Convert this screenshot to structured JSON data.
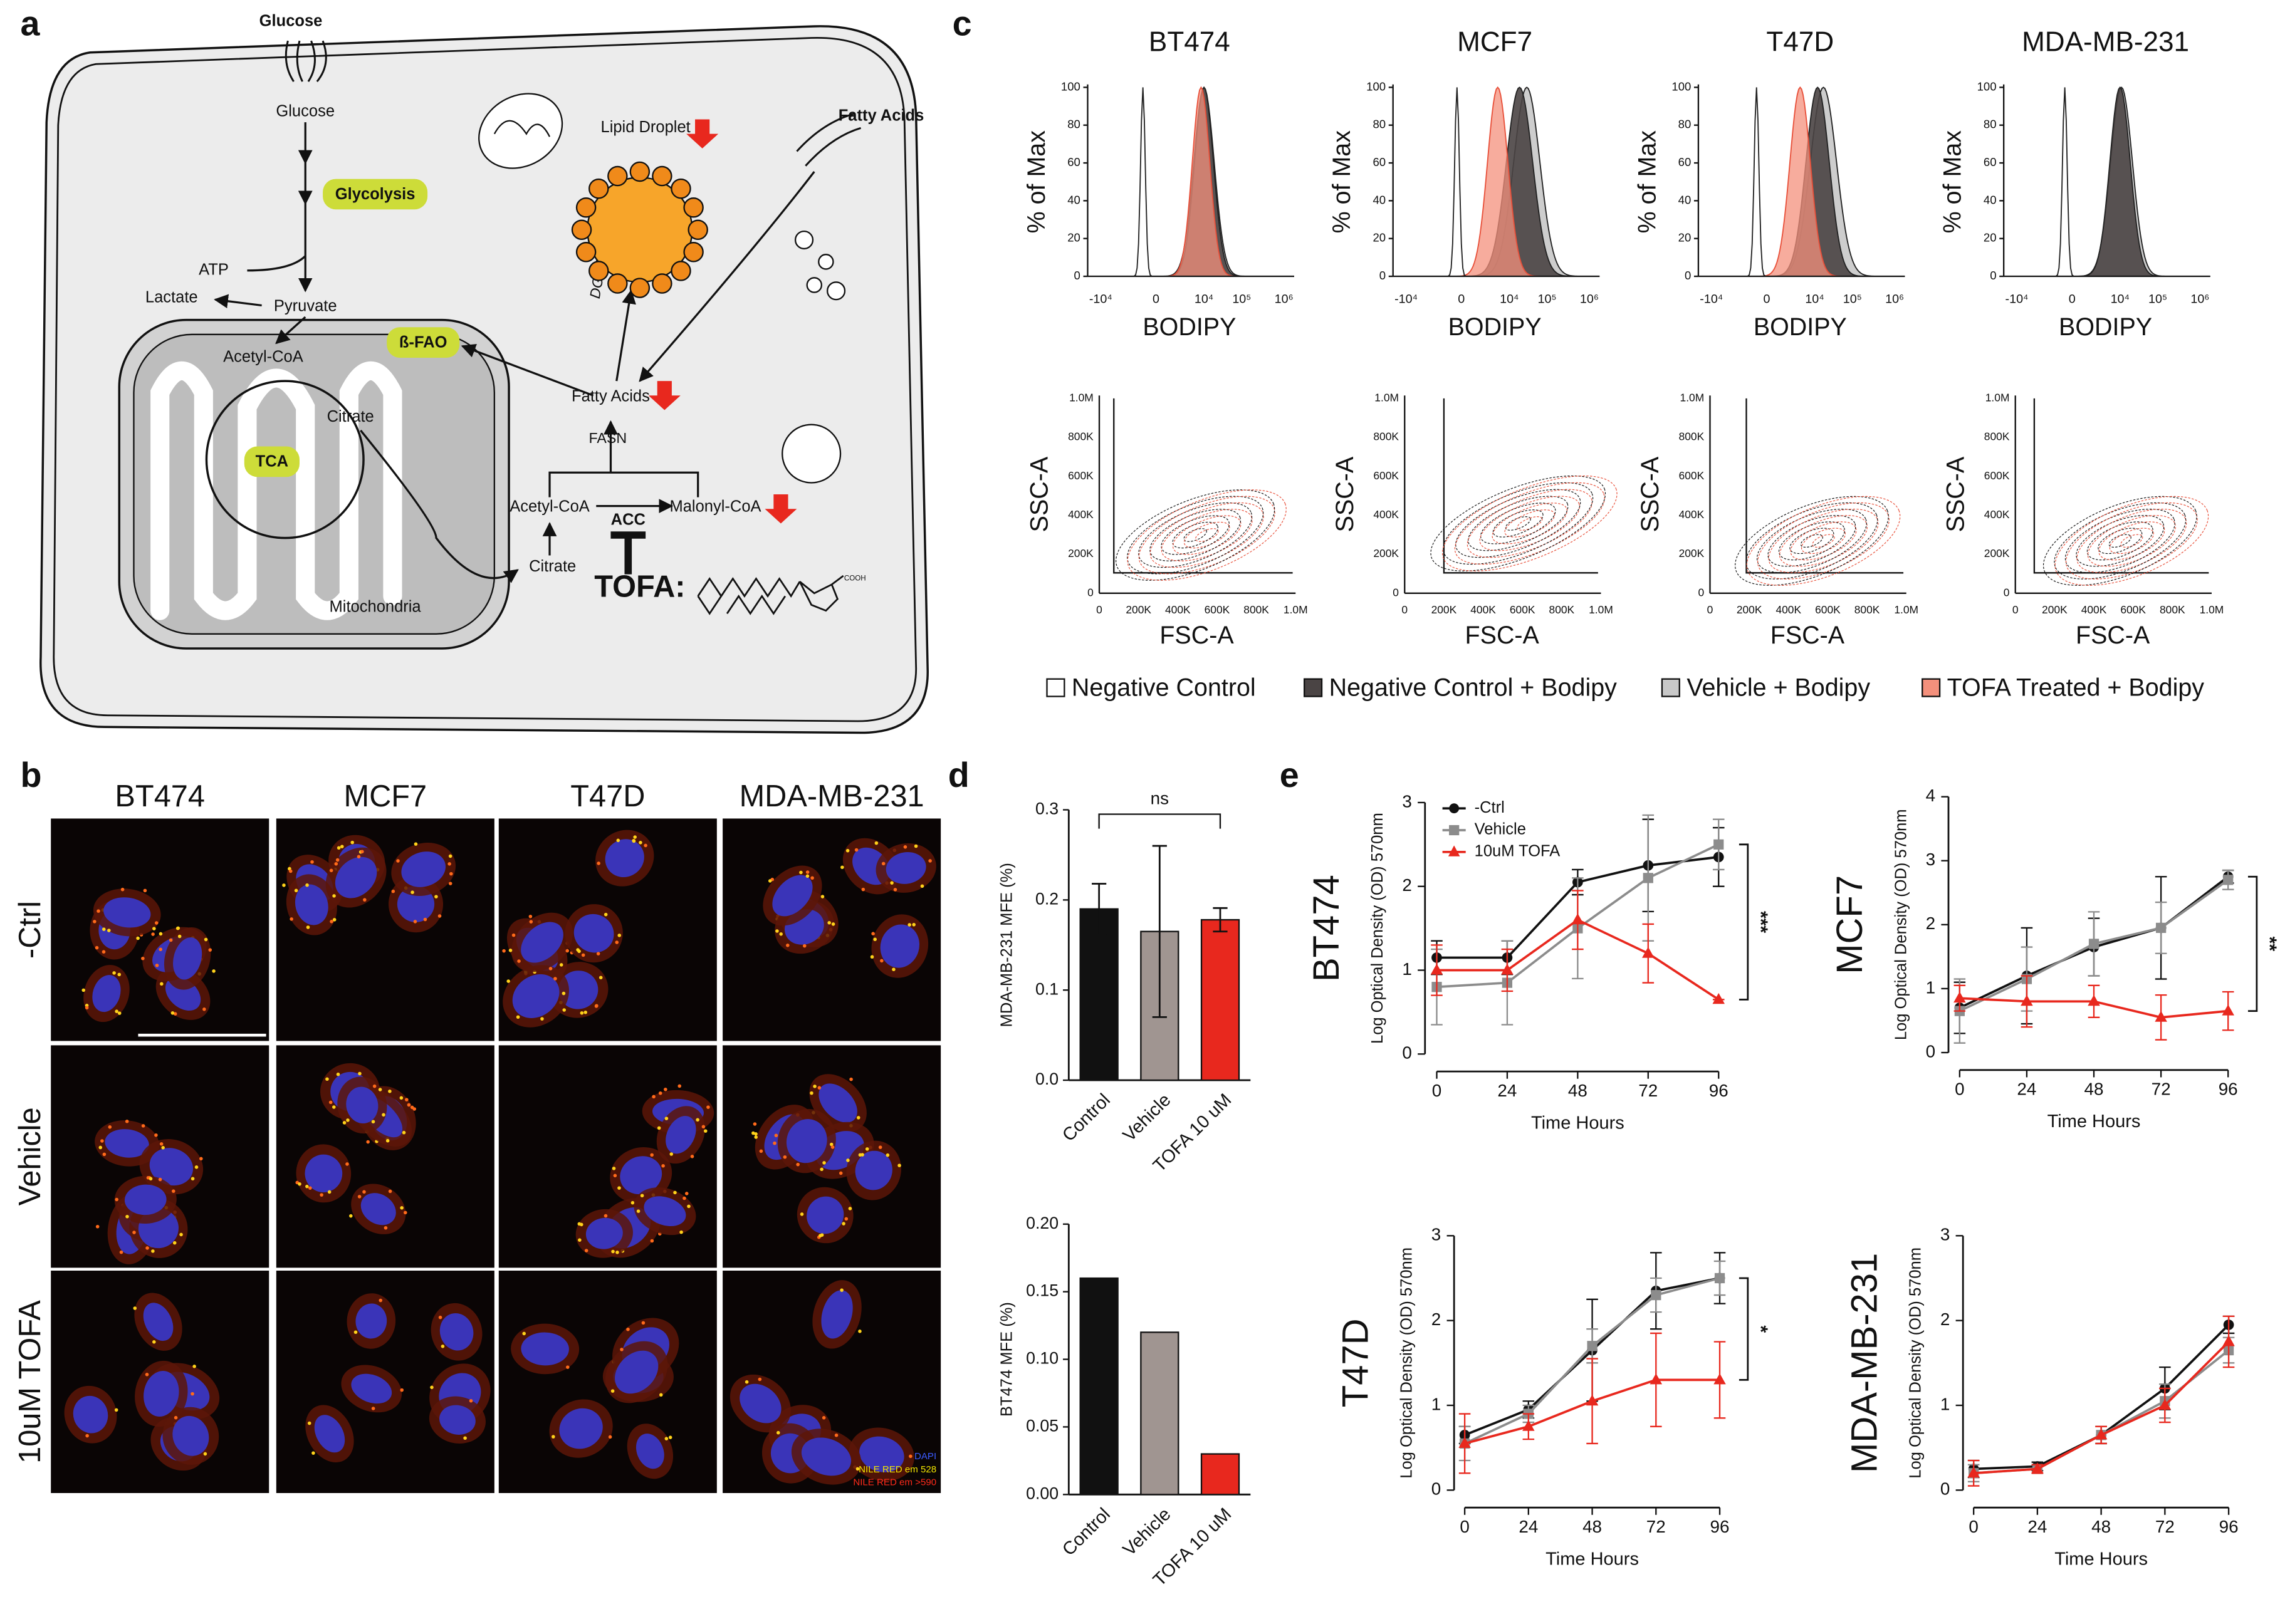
{
  "panel_labels": [
    "a",
    "b",
    "c",
    "d",
    "e"
  ],
  "diagram": {
    "glucose_out": "Glucose",
    "glucose_in": "Glucose",
    "glycolysis": "Glycolysis",
    "atp": "ATP",
    "lactate": "Lactate",
    "pyruvate": "Pyruvate",
    "acetyl_coa_mito": "Acetyl-CoA",
    "beta_fao": "ß-FAO",
    "citrate_mito": "Citrate",
    "tca": "TCA",
    "mitochondria": "Mitochondria",
    "lipid_droplet": "Lipid Droplet",
    "dgat": "DGAT",
    "fatty_acids_out": "Fatty Acids",
    "fatty_acids_in": "Fatty Acids",
    "fasn": "FASN",
    "acetyl_coa": "Acetyl-CoA",
    "acc": "ACC",
    "malonyl_coa": "Malonyl-CoA",
    "citrate": "Citrate",
    "tofa": "TOFA:",
    "cooh": "COOH"
  },
  "microscopy": {
    "columns": [
      "BT474",
      "MCF7",
      "T47D",
      "MDA-MB-231"
    ],
    "rows": [
      "-Ctrl",
      "Vehicle",
      "10uM TOFA"
    ],
    "legend": [
      {
        "label": "DAPI",
        "color": "#3b5bff"
      },
      {
        "label": "NILE RED em 528",
        "color": "#f2e600"
      },
      {
        "label": "NILE RED em >590",
        "color": "#ff2a1a"
      }
    ]
  },
  "flow": {
    "titles": [
      "BT474",
      "MCF7",
      "T47D",
      "MDA-MB-231"
    ],
    "hist_y_label": "% of Max",
    "hist_x_label": "BODIPY",
    "hist_yticks": [
      0,
      20,
      40,
      60,
      80,
      100
    ],
    "hist_xticks": [
      "-10⁴",
      "0",
      "10⁴",
      "10⁵",
      "10⁶"
    ],
    "contour_y_label": "SSC-A",
    "contour_x_label": "FSC-A",
    "contour_yticks": [
      "0",
      "200K",
      "400K",
      "600K",
      "800K",
      "1.0M"
    ],
    "contour_xticks": [
      "0",
      "200K",
      "400K",
      "600K",
      "800K",
      "1.0M"
    ],
    "legend": [
      {
        "label": "Negative Control",
        "color": "#ffffff"
      },
      {
        "label": "Negative Control + Bodipy",
        "color": "#4a4444"
      },
      {
        "label": "Vehicle + Bodipy",
        "color": "#c8c8c8"
      },
      {
        "label": "TOFA Treated + Bodipy",
        "color": "#f4907c"
      }
    ]
  },
  "chart_data": [
    {
      "type": "bar",
      "y_label": "MDA-MB-231 MFE (%)",
      "categories": [
        "Control",
        "Vehicle",
        "TOFA 10 uM"
      ],
      "values": [
        0.19,
        0.165,
        0.178
      ],
      "errors": [
        0.028,
        0.095,
        0.013
      ],
      "colors": [
        "#111111",
        "#a09591",
        "#e8281e"
      ],
      "significance": "ns",
      "ylim": [
        0,
        0.3
      ],
      "yticks": [
        {
          "value": 0,
          "label": "0.0"
        },
        0.1,
        0.2,
        0.3
      ]
    },
    {
      "type": "bar",
      "y_label": "BT474 MFE (%)",
      "categories": [
        "Control",
        "Vehicle",
        "TOFA 10 uM"
      ],
      "values": [
        0.16,
        0.12,
        0.03
      ],
      "colors": [
        "#111111",
        "#a09591",
        "#e8281e"
      ],
      "ylim": [
        0,
        0.2
      ],
      "yticks": [
        {
          "value": 0,
          "label": "0.00"
        },
        {
          "value": 0.05,
          "label": "0.05"
        },
        {
          "value": 0.1,
          "label": "0.10"
        },
        {
          "value": 0.15,
          "label": "0.15"
        },
        {
          "value": 0.2,
          "label": "0.20"
        }
      ]
    },
    {
      "type": "line",
      "title": "BT474",
      "y_label": "Log Optical Density (OD) 570nm",
      "x_label": "Time Hours",
      "x": [
        0,
        24,
        48,
        72,
        96
      ],
      "xlim": [
        -4,
        100
      ],
      "xticks": [
        0,
        24,
        48,
        72,
        96
      ],
      "ylim": [
        0,
        3
      ],
      "yticks": [
        0,
        1,
        2,
        3
      ],
      "legend": "upper-left",
      "significance": "***",
      "series": [
        {
          "name": "-Ctrl",
          "color": "#111111",
          "marker": "circle",
          "values": [
            1.15,
            1.15,
            2.05,
            2.25,
            2.35
          ],
          "errors": [
            0.2,
            0.2,
            0.15,
            0.55,
            0.35
          ]
        },
        {
          "name": "Vehicle",
          "color": "#8c8c8c",
          "marker": "square",
          "values": [
            0.8,
            0.85,
            1.5,
            2.1,
            2.5
          ],
          "errors": [
            0.45,
            0.5,
            0.6,
            0.75,
            0.3
          ]
        },
        {
          "name": "10uM TOFA",
          "color": "#e8281e",
          "marker": "triangle",
          "values": [
            1.0,
            1.0,
            1.6,
            1.2,
            0.65
          ],
          "errors": [
            0.3,
            0.25,
            0.35,
            0.35,
            0
          ]
        }
      ]
    },
    {
      "type": "line",
      "title": "MCF7",
      "y_label": "Log Optical Density (OD) 570nm",
      "x_label": "Time Hours",
      "x": [
        0,
        24,
        48,
        72,
        96
      ],
      "xlim": [
        -4,
        100
      ],
      "xticks": [
        0,
        24,
        48,
        72,
        96
      ],
      "ylim": [
        0,
        4
      ],
      "yticks": [
        0,
        1,
        2,
        3,
        4
      ],
      "significance": "**",
      "series": [
        {
          "color": "#111111",
          "marker": "circle",
          "values": [
            0.7,
            1.2,
            1.65,
            1.95,
            2.75
          ],
          "errors": [
            0.4,
            0.75,
            0.45,
            0.8,
            0.1
          ]
        },
        {
          "color": "#8c8c8c",
          "marker": "square",
          "values": [
            0.65,
            1.15,
            1.7,
            1.95,
            2.7
          ],
          "errors": [
            0.5,
            0.5,
            0.5,
            0.4,
            0.15
          ]
        },
        {
          "color": "#e8281e",
          "marker": "triangle",
          "values": [
            0.85,
            0.8,
            0.8,
            0.55,
            0.65
          ],
          "errors": [
            0.2,
            0.4,
            0.25,
            0.35,
            0.3
          ]
        }
      ]
    },
    {
      "type": "line",
      "title": "T47D",
      "y_label": "Log Optical Density (OD) 570nm",
      "x_label": "Time Hours",
      "x": [
        0,
        24,
        48,
        72,
        96
      ],
      "xlim": [
        -4,
        100
      ],
      "xticks": [
        0,
        24,
        48,
        72,
        96
      ],
      "ylim": [
        0,
        3
      ],
      "yticks": [
        0,
        1,
        2,
        3
      ],
      "significance": "*",
      "series": [
        {
          "color": "#111111",
          "marker": "circle",
          "values": [
            0.65,
            0.95,
            1.65,
            2.35,
            2.5
          ],
          "errors": [
            0.1,
            0.1,
            0.6,
            0.45,
            0.3
          ]
        },
        {
          "color": "#8c8c8c",
          "marker": "square",
          "values": [
            0.55,
            0.9,
            1.7,
            2.3,
            2.5
          ],
          "errors": [
            0.2,
            0.1,
            0.2,
            0.2,
            0.2
          ]
        },
        {
          "color": "#e8281e",
          "marker": "triangle",
          "values": [
            0.55,
            0.75,
            1.05,
            1.3,
            1.3
          ],
          "errors": [
            0.35,
            0.15,
            0.5,
            0.55,
            0.45
          ]
        }
      ]
    },
    {
      "type": "line",
      "title": "MDA-MB-231",
      "y_label": "Log Optical Density (OD) 570nm",
      "x_label": "Time Hours",
      "x": [
        0,
        24,
        48,
        72,
        96
      ],
      "xlim": [
        -4,
        100
      ],
      "xticks": [
        0,
        24,
        48,
        72,
        96
      ],
      "ylim": [
        0,
        3
      ],
      "yticks": [
        0,
        1,
        2,
        3
      ],
      "series": [
        {
          "color": "#111111",
          "marker": "circle",
          "values": [
            0.25,
            0.28,
            0.65,
            1.2,
            1.95
          ],
          "errors": [
            0.1,
            0.05,
            0.1,
            0.25,
            0.1
          ]
        },
        {
          "color": "#8c8c8c",
          "marker": "square",
          "values": [
            0.2,
            0.25,
            0.65,
            1.05,
            1.65
          ],
          "errors": [
            0.1,
            0.05,
            0.1,
            0.2,
            0.15
          ]
        },
        {
          "color": "#e8281e",
          "marker": "triangle",
          "values": [
            0.2,
            0.25,
            0.65,
            1.0,
            1.75
          ],
          "errors": [
            0.15,
            0.05,
            0.1,
            0.2,
            0.3
          ]
        }
      ]
    }
  ]
}
